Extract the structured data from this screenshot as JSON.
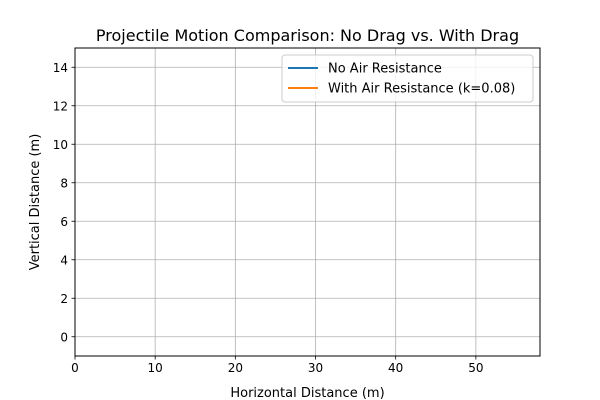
{
  "chart_data": {
    "type": "line",
    "title": "Projectile Motion Comparison: No Drag vs. With Drag",
    "xlabel": "Horizontal Distance (m)",
    "ylabel": "Vertical Distance (m)",
    "xlim": [
      0,
      58
    ],
    "ylim": [
      -1,
      15
    ],
    "xticks": [
      0,
      10,
      20,
      30,
      40,
      50
    ],
    "yticks": [
      0,
      2,
      4,
      6,
      8,
      10,
      12,
      14
    ],
    "grid": true,
    "legend_position": "top-right",
    "series": [
      {
        "name": "No Air Resistance",
        "color": "#1f77b4",
        "x": [],
        "y": []
      },
      {
        "name": "With Air Resistance (k=0.08)",
        "color": "#ff7f0e",
        "x": [],
        "y": []
      }
    ]
  }
}
